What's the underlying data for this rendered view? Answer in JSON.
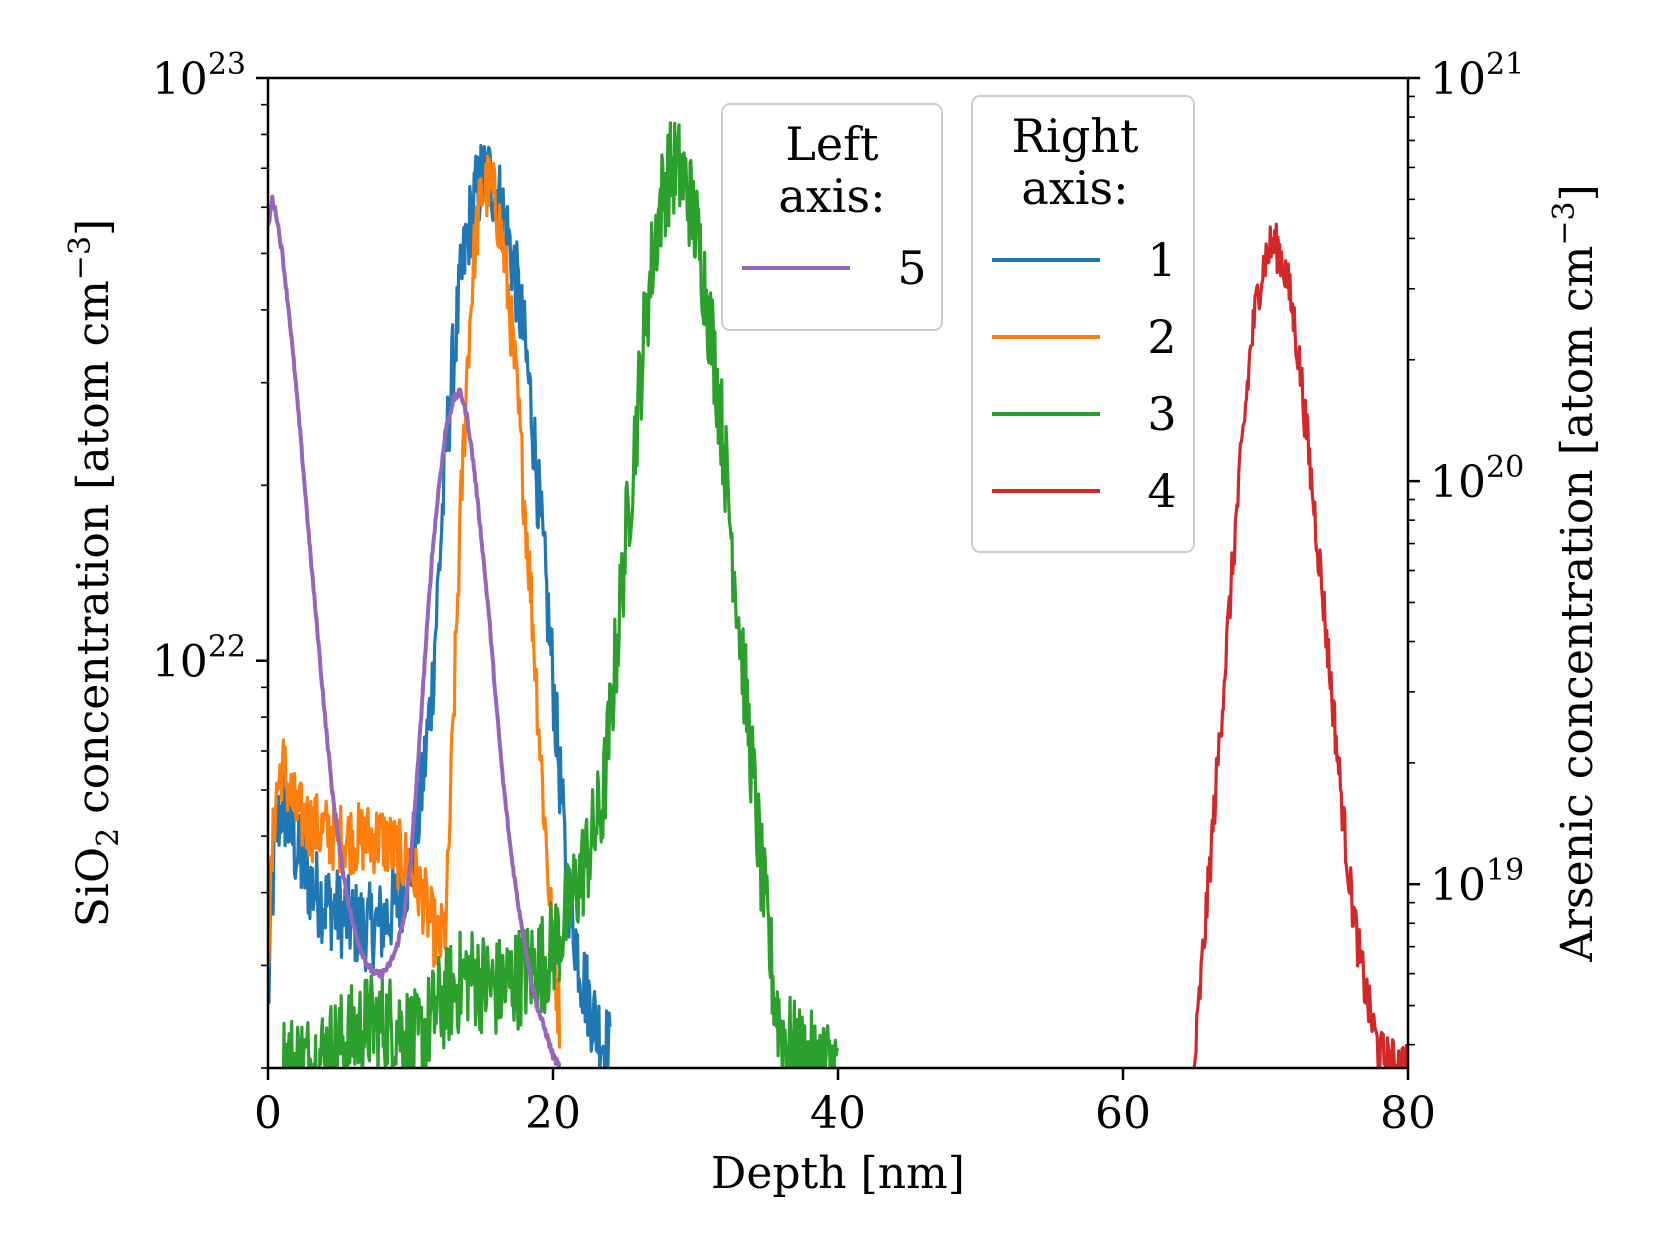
{
  "chart_data": {
    "type": "line",
    "xlabel": "Depth [nm]",
    "xlim": [
      0,
      80
    ],
    "x_ticks": [
      {
        "value": 0,
        "label": "0"
      },
      {
        "value": 20,
        "label": "20"
      },
      {
        "value": 40,
        "label": "40"
      },
      {
        "value": 60,
        "label": "60"
      },
      {
        "value": 80,
        "label": "80"
      }
    ],
    "left_axis": {
      "label_parts": {
        "main": "SiO",
        "sub": "2",
        "rest": " concentration [atom cm",
        "sup": "−3",
        "close": "]"
      },
      "scale": "log",
      "ylim": [
        2e+21,
        1e+23
      ],
      "ticks": [
        {
          "value": 1e+22,
          "base": "10",
          "exp": "22"
        },
        {
          "value": 1e+23,
          "base": "10",
          "exp": "23"
        }
      ]
    },
    "right_axis": {
      "label_parts": {
        "main": "Arsenic concentration [atom cm",
        "sup": "−3",
        "close": "]"
      },
      "scale": "log",
      "ylim": [
        3.5e+18,
        1e+21
      ],
      "ticks": [
        {
          "value": 1e+19,
          "base": "10",
          "exp": "19"
        },
        {
          "value": 1e+20,
          "base": "10",
          "exp": "20"
        },
        {
          "value": 1e+21,
          "base": "10",
          "exp": "21"
        }
      ]
    },
    "legends": [
      {
        "title_lines": [
          "Left",
          "axis:"
        ],
        "entries": [
          {
            "label": "5",
            "series": 4
          }
        ]
      },
      {
        "title_lines": [
          "Right",
          "axis:"
        ],
        "entries": [
          {
            "label": "1",
            "series": 0
          },
          {
            "label": "2",
            "series": 1
          },
          {
            "label": "3",
            "series": 2
          },
          {
            "label": "4",
            "series": 3
          }
        ]
      }
    ],
    "series": [
      {
        "name": "1",
        "axis": "right",
        "color": "#1f77b4",
        "x": [
          0,
          0.5,
          1,
          1.5,
          2,
          3,
          4,
          5,
          6,
          7,
          8,
          9,
          10,
          10.5,
          11,
          11.5,
          12,
          12.5,
          13,
          13.5,
          14,
          14.5,
          15,
          15.5,
          16,
          16.5,
          17,
          17.5,
          18,
          18.5,
          19,
          19.5,
          20,
          20.5,
          21,
          22,
          23,
          24
        ],
        "y": [
          5e+18,
          1.3e+19,
          1.6e+19,
          1.4e+19,
          1.2e+19,
          1e+19,
          9e+18,
          8.5e+18,
          8e+18,
          7.8e+18,
          8e+18,
          9e+18,
          1.1e+19,
          1.4e+19,
          2e+19,
          3e+19,
          6e+19,
          1.2e+20,
          2e+20,
          3e+20,
          4.1e+20,
          5e+20,
          5.6e+20,
          5.7e+20,
          5.3e+20,
          4.6e+20,
          3.8e+20,
          3e+20,
          2.2e+20,
          1.5e+20,
          9e+19,
          5.5e+19,
          3.2e+19,
          1.8e+19,
          1e+19,
          6e+18,
          4.5e+18,
          3.8e+18
        ]
      },
      {
        "name": "2",
        "axis": "right",
        "color": "#ff7f0e",
        "x": [
          0,
          0.5,
          1,
          1.5,
          2,
          3,
          4,
          5,
          6,
          7,
          8,
          9,
          10,
          11,
          12,
          12.5,
          13,
          13.5,
          14,
          14.5,
          15,
          15.5,
          16,
          16.5,
          17,
          17.5,
          18,
          18.5,
          19,
          19.5,
          20,
          20.5
        ],
        "y": [
          7e+18,
          1.6e+19,
          2e+19,
          1.7e+19,
          1.5e+19,
          1.4e+19,
          1.35e+19,
          1.3e+19,
          1.3e+19,
          1.3e+19,
          1.3e+19,
          1.2e+19,
          1.1e+19,
          9e+18,
          7e+18,
          8e+18,
          2.5e+19,
          8e+19,
          2e+20,
          3.8e+20,
          5.2e+20,
          5.4e+20,
          4.9e+20,
          3.8e+20,
          2.6e+20,
          1.6e+20,
          9e+19,
          5e+19,
          2.5e+19,
          1.3e+19,
          7e+18,
          4.5e+18
        ]
      },
      {
        "name": "3",
        "axis": "right",
        "color": "#2ca02c",
        "x": [
          1,
          3,
          5,
          7,
          9,
          10.5,
          12,
          14,
          16,
          18,
          19.5,
          20.5,
          21.5,
          22.5,
          23.5,
          24,
          24.5,
          25,
          25.5,
          26,
          26.5,
          27,
          27.5,
          28,
          28.5,
          29,
          29.5,
          30,
          30.5,
          31,
          31.5,
          32,
          32.5,
          33,
          33.5,
          34,
          34.5,
          35,
          35.5,
          36,
          37,
          38,
          40
        ],
        "y": [
          3.6e+18,
          3.6e+18,
          4e+18,
          4.5e+18,
          4.5e+18,
          4e+18,
          5e+18,
          6e+18,
          5.5e+18,
          6e+18,
          6.5e+18,
          7.5e+18,
          9.5e+18,
          1.2e+19,
          1.6e+19,
          2.5e+19,
          4e+19,
          6.5e+19,
          1e+20,
          1.6e+20,
          2.5e+20,
          3.6e+20,
          4.8e+20,
          5.7e+20,
          6e+20,
          5.8e+20,
          5.2e+20,
          4.3e+20,
          3.4e+20,
          2.5e+20,
          1.8e+20,
          1.2e+20,
          7.5e+19,
          4.8e+19,
          3e+19,
          1.9e+19,
          1.2e+19,
          8e+18,
          5.5e+18,
          4.3e+18,
          3.8e+18,
          3.6e+18,
          3.5e+18
        ]
      },
      {
        "name": "4",
        "axis": "right",
        "color": "#d62728",
        "x": [
          65,
          65.5,
          66,
          66.5,
          67,
          67.5,
          68,
          68.5,
          69,
          69.5,
          70,
          70.5,
          71,
          71.5,
          72,
          72.5,
          73,
          73.5,
          74,
          74.5,
          75,
          75.5,
          76,
          76.5,
          77,
          77.5,
          78,
          79,
          80
        ],
        "y": [
          3.5e+18,
          6e+18,
          1e+19,
          1.7e+19,
          2.9e+19,
          5e+19,
          8.5e+19,
          1.4e+20,
          2.2e+20,
          3e+20,
          3.6e+20,
          3.9e+20,
          3.7e+20,
          3.2e+20,
          2.5e+20,
          1.8e+20,
          1.2e+20,
          8e+19,
          5.3e+19,
          3.4e+19,
          2.2e+19,
          1.4e+19,
          9.5e+18,
          7e+18,
          5.5e+18,
          4.5e+18,
          3.8e+18,
          3.6e+18,
          3.6e+18
        ]
      },
      {
        "name": "5",
        "axis": "left",
        "color": "#9467bd",
        "x": [
          0,
          0.3,
          0.6,
          1,
          1.5,
          2,
          2.5,
          3,
          3.5,
          4,
          4.5,
          5,
          5.5,
          6,
          6.5,
          7,
          7.5,
          8,
          8.5,
          9,
          9.5,
          10,
          10.5,
          11,
          11.5,
          12,
          12.5,
          13,
          13.5,
          14,
          14.5,
          15,
          15.5,
          16,
          16.5,
          17,
          17.5,
          18,
          18.5,
          19,
          19.5,
          20,
          20.5
        ],
        "y": [
          5.5e+22,
          6.2e+22,
          5.8e+22,
          5e+22,
          3.9e+22,
          2.9e+22,
          2.1e+22,
          1.5e+22,
          1.1e+22,
          8e+21,
          6e+21,
          4.8e+21,
          4e+21,
          3.5e+21,
          3.2e+21,
          3e+21,
          2.9e+21,
          2.9e+21,
          3e+21,
          3.2e+21,
          3.6e+21,
          4.5e+21,
          6.5e+21,
          1e+22,
          1.5e+22,
          2e+22,
          2.5e+22,
          2.8e+22,
          2.9e+22,
          2.6e+22,
          2.1e+22,
          1.6e+22,
          1.2e+22,
          8.5e+21,
          6.2e+21,
          4.8e+21,
          3.9e+21,
          3.3e+21,
          2.8e+21,
          2.5e+21,
          2.3e+21,
          2.1e+21,
          2e+21
        ]
      }
    ]
  }
}
